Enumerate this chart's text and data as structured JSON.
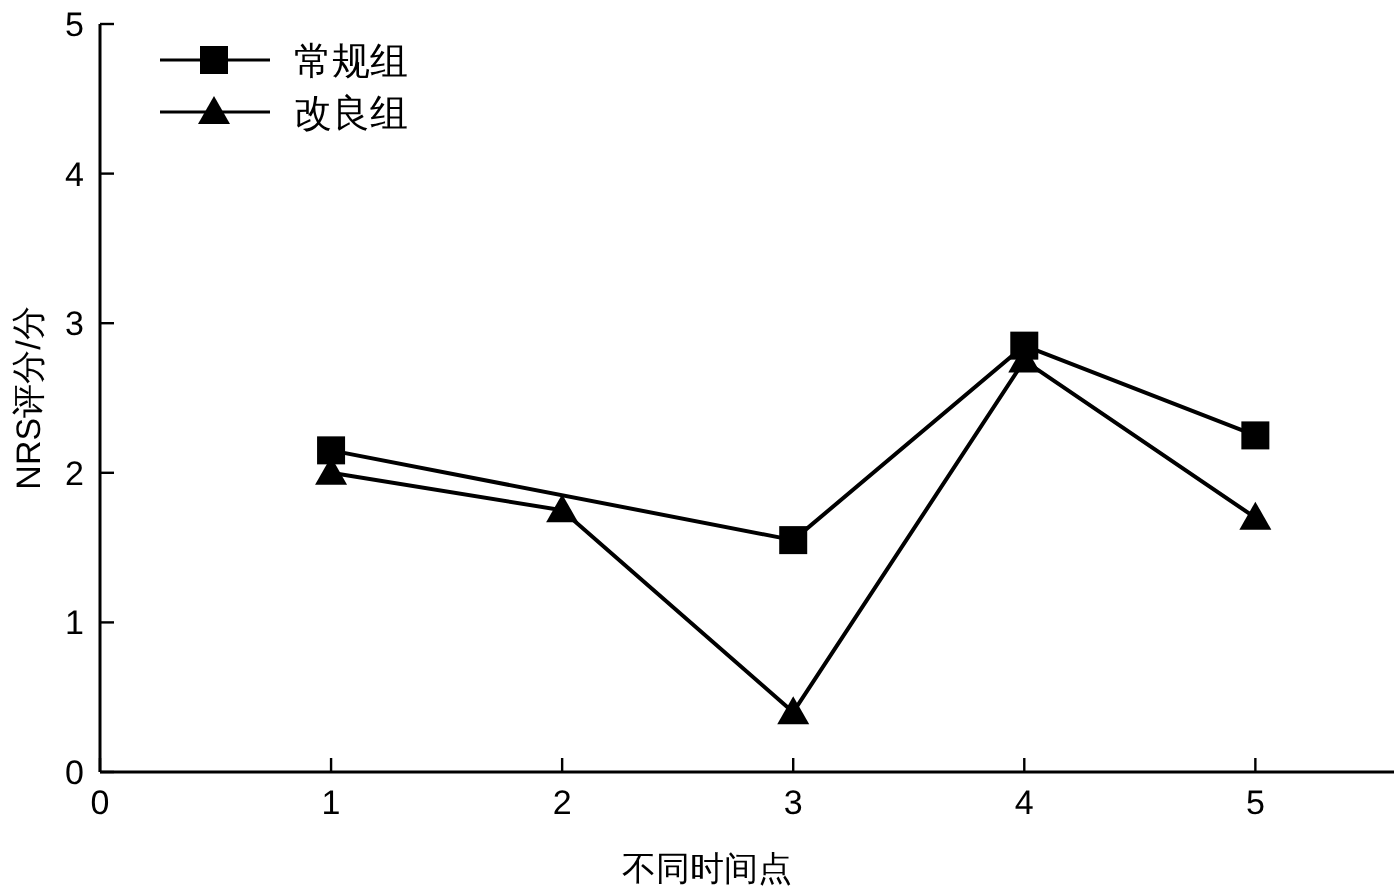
{
  "chart_data": {
    "type": "line",
    "xlabel": "不同时间点",
    "ylabel": "NRS评分/分",
    "xlim": [
      0,
      5.6
    ],
    "xticks": [
      0,
      1,
      2,
      3,
      4,
      5
    ],
    "ylim": [
      0,
      5
    ],
    "yticks": [
      0,
      1,
      2,
      3,
      4,
      5
    ],
    "grid": false,
    "legend": "top left",
    "line_style": "solid",
    "series": [
      {
        "name": "常规组",
        "color": "#000000",
        "marker": "square",
        "x": [
          1,
          3,
          4,
          5
        ],
        "values": [
          2.15,
          1.55,
          2.85,
          2.25
        ]
      },
      {
        "name": "改良组",
        "color": "#000000",
        "marker": "triangle",
        "x": [
          1,
          2,
          3,
          4,
          5
        ],
        "values": [
          2.0,
          1.75,
          0.4,
          2.75,
          1.7
        ]
      }
    ]
  }
}
